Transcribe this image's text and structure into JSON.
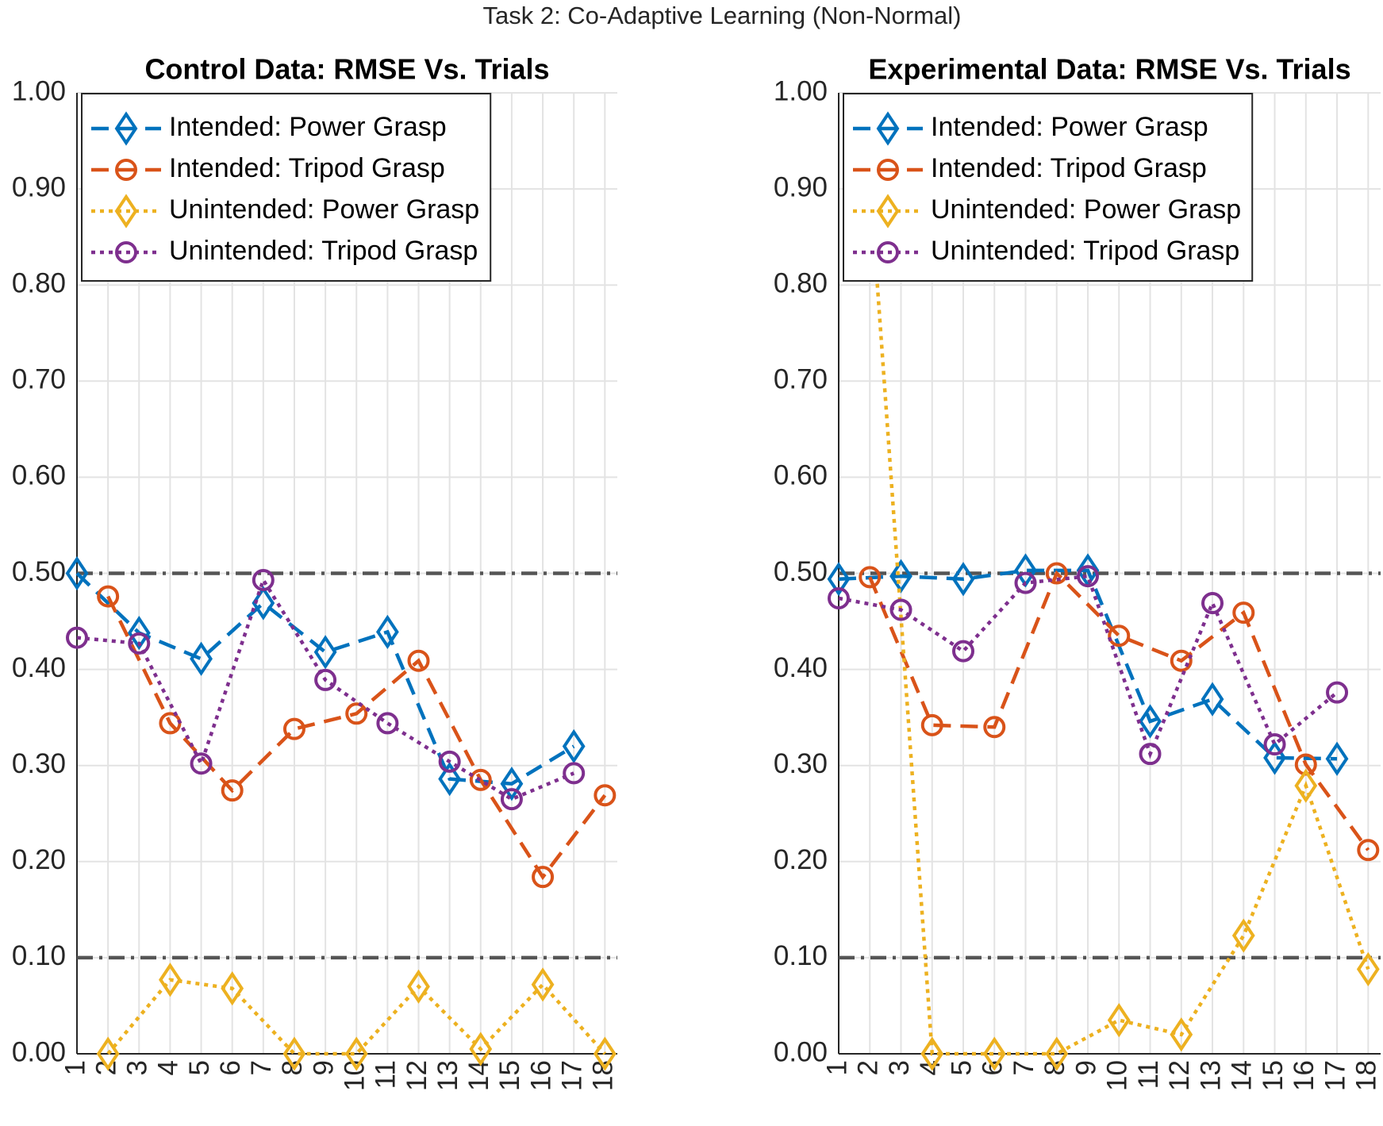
{
  "title": "Task 2: Co-Adaptive Learning (Non-Normal)",
  "chart_data": [
    {
      "type": "line",
      "title": "Control Data: RMSE Vs. Trials",
      "xlim": [
        1,
        18.4
      ],
      "xticks": [
        1,
        2,
        3,
        4,
        5,
        6,
        7,
        8,
        9,
        10,
        11,
        12,
        13,
        14,
        15,
        16,
        17,
        18
      ],
      "ylim": [
        0,
        1
      ],
      "yticks": [
        {
          "value": 0,
          "label": "0.00"
        },
        {
          "value": 0.1,
          "label": "0.10"
        },
        {
          "value": 0.2,
          "label": "0.20"
        },
        {
          "value": 0.3,
          "label": "0.30"
        },
        {
          "value": 0.4,
          "label": "0.40"
        },
        {
          "value": 0.5,
          "label": "0.50"
        },
        {
          "value": 0.6,
          "label": "0.60"
        },
        {
          "value": 0.7,
          "label": "0.70"
        },
        {
          "value": 0.8,
          "label": "0.80"
        },
        {
          "value": 0.9,
          "label": "0.90"
        },
        {
          "value": 1,
          "label": "1.00"
        }
      ],
      "grid": true,
      "legend": "northwest",
      "hlines": [
        0.5,
        0.1
      ],
      "hline_color": "#555555",
      "series": [
        {
          "name": "Intended: Power Grasp",
          "color": "#0072BD",
          "marker": "diamond",
          "linestyle": "dashed",
          "x": [
            1,
            3,
            5,
            7,
            9,
            11,
            13,
            15,
            17
          ],
          "values": [
            0.5,
            0.438,
            0.411,
            0.469,
            0.418,
            0.439,
            0.286,
            0.281,
            0.32
          ]
        },
        {
          "name": "Intended: Tripod Grasp",
          "color": "#D95319",
          "marker": "circle",
          "linestyle": "dashed",
          "x": [
            2,
            4,
            6,
            8,
            10,
            12,
            14,
            16,
            18
          ],
          "values": [
            0.476,
            0.344,
            0.274,
            0.338,
            0.354,
            0.409,
            0.285,
            0.184,
            0.269
          ]
        },
        {
          "name": "Unintended: Power Grasp",
          "color": "#EDB120",
          "marker": "diamond",
          "linestyle": "dotted",
          "x": [
            2,
            4,
            6,
            8,
            10,
            12,
            14,
            16,
            18
          ],
          "values": [
            0,
            0.077,
            0.068,
            0,
            0,
            0.07,
            0.005,
            0.072,
            0
          ]
        },
        {
          "name": "Unintended: Tripod Grasp",
          "color": "#7E2F8E",
          "marker": "circle",
          "linestyle": "dotted",
          "x": [
            1,
            3,
            5,
            7,
            9,
            11,
            13,
            15,
            17
          ],
          "values": [
            0.433,
            0.427,
            0.302,
            0.493,
            0.389,
            0.344,
            0.304,
            0.265,
            0.292
          ]
        }
      ]
    },
    {
      "type": "line",
      "title": "Experimental Data: RMSE Vs. Trials",
      "xlim": [
        1,
        18.4
      ],
      "xticks": [
        1,
        2,
        3,
        4,
        5,
        6,
        7,
        8,
        9,
        10,
        11,
        12,
        13,
        14,
        15,
        16,
        17,
        18
      ],
      "ylim": [
        0,
        1
      ],
      "yticks": [
        {
          "value": 0,
          "label": "0.00"
        },
        {
          "value": 0.1,
          "label": "0.10"
        },
        {
          "value": 0.2,
          "label": "0.20"
        },
        {
          "value": 0.3,
          "label": "0.30"
        },
        {
          "value": 0.4,
          "label": "0.40"
        },
        {
          "value": 0.5,
          "label": "0.50"
        },
        {
          "value": 0.6,
          "label": "0.60"
        },
        {
          "value": 0.7,
          "label": "0.70"
        },
        {
          "value": 0.8,
          "label": "0.80"
        },
        {
          "value": 0.9,
          "label": "0.90"
        },
        {
          "value": 1,
          "label": "1.00"
        }
      ],
      "grid": true,
      "legend": "northwest",
      "hlines": [
        0.5,
        0.1
      ],
      "hline_color": "#555555",
      "series": [
        {
          "name": "Intended: Power Grasp",
          "color": "#0072BD",
          "marker": "diamond",
          "linestyle": "dashed",
          "x": [
            1,
            3,
            5,
            7,
            9,
            11,
            13,
            15,
            17
          ],
          "values": [
            0.494,
            0.497,
            0.494,
            0.503,
            0.503,
            0.346,
            0.369,
            0.308,
            0.307
          ]
        },
        {
          "name": "Intended: Tripod Grasp",
          "color": "#D95319",
          "marker": "circle",
          "linestyle": "dashed",
          "x": [
            2,
            4,
            6,
            8,
            10,
            12,
            14,
            16,
            18
          ],
          "values": [
            0.496,
            0.342,
            0.34,
            0.5,
            0.435,
            0.409,
            0.459,
            0.301,
            0.212
          ]
        },
        {
          "name": "Unintended: Power Grasp",
          "color": "#EDB120",
          "marker": "diamond",
          "linestyle": "dotted",
          "x": [
            2,
            4,
            6,
            8,
            10,
            12,
            14,
            16,
            18
          ],
          "values": [
            0.91,
            0,
            0,
            0,
            0.035,
            0.02,
            0.123,
            0.279,
            0.088
          ]
        },
        {
          "name": "Unintended: Tripod Grasp",
          "color": "#7E2F8E",
          "marker": "circle",
          "linestyle": "dotted",
          "x": [
            1,
            3,
            5,
            7,
            9,
            11,
            13,
            15,
            17
          ],
          "values": [
            0.474,
            0.462,
            0.419,
            0.49,
            0.497,
            0.312,
            0.469,
            0.322,
            0.376
          ]
        }
      ]
    }
  ]
}
